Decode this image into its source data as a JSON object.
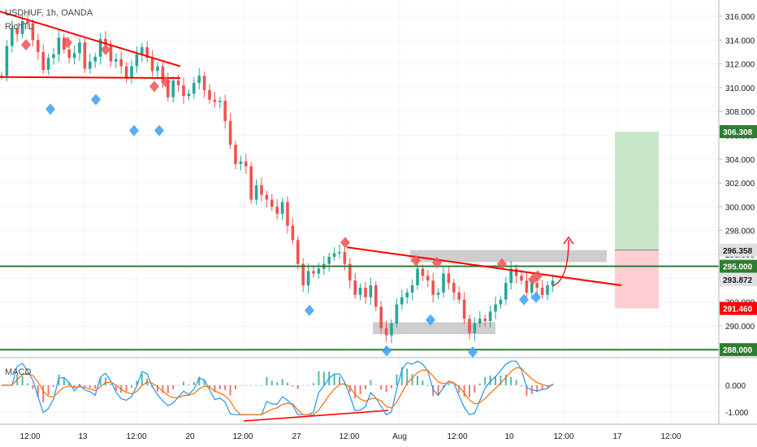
{
  "header": {
    "symbol_line": "USDHUF, 1h, OANDA",
    "indicator": "RichTL"
  },
  "macd_label": "MACD",
  "colors": {
    "green_line": "#2e7d32",
    "red_line": "#ff0000",
    "up_candle": "#26a69a",
    "down_candle": "#ef5350",
    "marker_red": "#ef5350",
    "marker_blue": "#42a5f5",
    "target_zone": "#c8e6c9",
    "stop_zone": "#ffcdd2",
    "grey_zone": "#bdbdbd",
    "macd_line": "#2196f3",
    "signal_line": "#ff6d00"
  },
  "price_axis": {
    "ticks": [
      "316.000",
      "314.000",
      "312.000",
      "310.000",
      "308.000",
      "306.000",
      "304.000",
      "302.000",
      "300.000",
      "298.000",
      "296.000",
      "294.000",
      "292.000",
      "290.000"
    ],
    "labels": [
      {
        "text": "306.308",
        "bg": "#2e7d32",
        "fg": "#ffffff"
      },
      {
        "text": "296.358",
        "bg": "#e0e0e0",
        "fg": "#131722"
      },
      {
        "text": "295.000",
        "bg": "#2e7d32",
        "fg": "#ffffff"
      },
      {
        "text": "293.872",
        "bg": "#e0e0e0",
        "fg": "#131722"
      },
      {
        "text": "291.460",
        "bg": "#ff0000",
        "fg": "#ffffff"
      },
      {
        "text": "288.000",
        "bg": "#2e7d32",
        "fg": "#ffffff"
      }
    ]
  },
  "macd_axis": {
    "ticks": [
      "0.000",
      "-1.000"
    ]
  },
  "time_axis": {
    "ticks": [
      "12:00",
      "13",
      "12:00",
      "20",
      "12:00",
      "27",
      "12:00",
      "Aug",
      "12:00",
      "10",
      "12:00",
      "17",
      "12:00"
    ]
  },
  "chart_data": {
    "type": "candlestick",
    "symbol": "USDHUF",
    "timeframe": "1h",
    "ylim": [
      287.5,
      317
    ],
    "horizontal_levels": [
      295.0,
      288.0
    ],
    "position": {
      "entry": 293.872,
      "target": 306.308,
      "stop": 291.46
    },
    "close_path": [
      [
        0,
        311
      ],
      [
        4,
        313.5
      ],
      [
        8,
        315
      ],
      [
        12,
        314.5
      ],
      [
        16,
        315.6
      ],
      [
        20,
        315.4
      ],
      [
        24,
        314
      ],
      [
        28,
        313
      ],
      [
        32,
        311.5
      ],
      [
        36,
        312.5
      ],
      [
        40,
        312.8
      ],
      [
        44,
        314.2
      ],
      [
        48,
        313.2
      ],
      [
        52,
        312.5
      ],
      [
        56,
        312.9
      ],
      [
        60,
        313.8
      ],
      [
        64,
        311.6
      ],
      [
        68,
        312.2
      ],
      [
        72,
        312.6
      ],
      [
        76,
        314.1
      ],
      [
        80,
        313.6
      ],
      [
        84,
        312.2
      ],
      [
        88,
        312.4
      ],
      [
        92,
        311.8
      ],
      [
        96,
        310.8
      ],
      [
        100,
        311.8
      ],
      [
        104,
        312.8
      ],
      [
        108,
        313.4
      ],
      [
        112,
        312.5
      ],
      [
        116,
        311.4
      ],
      [
        120,
        311.8
      ],
      [
        124,
        310.6
      ],
      [
        128,
        309.2
      ],
      [
        132,
        310.6
      ],
      [
        136,
        310.2
      ],
      [
        140,
        309.3
      ],
      [
        144,
        309.5
      ],
      [
        148,
        310.4
      ],
      [
        152,
        311
      ],
      [
        156,
        309.8
      ],
      [
        160,
        309
      ],
      [
        164,
        308.8
      ],
      [
        168,
        308.9
      ],
      [
        172,
        307.2
      ],
      [
        176,
        305.2
      ],
      [
        180,
        303.6
      ],
      [
        184,
        303.8
      ],
      [
        188,
        303.4
      ],
      [
        192,
        300.6
      ],
      [
        196,
        301.8
      ],
      [
        200,
        301
      ],
      [
        204,
        300.6
      ],
      [
        208,
        300
      ],
      [
        212,
        299.4
      ],
      [
        216,
        300.4
      ],
      [
        220,
        298.4
      ],
      [
        224,
        297.2
      ],
      [
        228,
        295.2
      ],
      [
        232,
        293.4
      ],
      [
        236,
        294.6
      ],
      [
        240,
        294.4
      ],
      [
        244,
        294.8
      ],
      [
        248,
        295.2
      ],
      [
        252,
        295.8
      ],
      [
        256,
        296.1
      ],
      [
        260,
        296.2
      ],
      [
        264,
        295.2
      ],
      [
        268,
        293.8
      ],
      [
        272,
        292.6
      ],
      [
        276,
        293.2
      ],
      [
        280,
        292.4
      ],
      [
        284,
        293.4
      ],
      [
        288,
        291.6
      ],
      [
        292,
        289.8
      ],
      [
        296,
        289.2
      ],
      [
        300,
        290.2
      ],
      [
        304,
        291.8
      ],
      [
        308,
        292.4
      ],
      [
        312,
        292.8
      ],
      [
        316,
        293.4
      ],
      [
        320,
        294.8
      ],
      [
        324,
        294.2
      ],
      [
        328,
        293.8
      ],
      [
        332,
        292.6
      ],
      [
        336,
        292.8
      ],
      [
        340,
        294.4
      ],
      [
        344,
        293.6
      ],
      [
        348,
        292.8
      ],
      [
        352,
        292.2
      ],
      [
        356,
        290.6
      ],
      [
        360,
        289.4
      ],
      [
        364,
        290.2
      ],
      [
        368,
        290.6
      ],
      [
        372,
        290.4
      ],
      [
        376,
        291.2
      ],
      [
        380,
        291.8
      ],
      [
        384,
        292.2
      ],
      [
        388,
        293.6
      ],
      [
        392,
        294.8
      ],
      [
        396,
        294.2
      ],
      [
        400,
        293.8
      ],
      [
        404,
        292.8
      ],
      [
        408,
        293.6
      ],
      [
        412,
        293.2
      ],
      [
        416,
        292.6
      ],
      [
        420,
        293.4
      ],
      [
        424,
        293.8
      ]
    ]
  }
}
